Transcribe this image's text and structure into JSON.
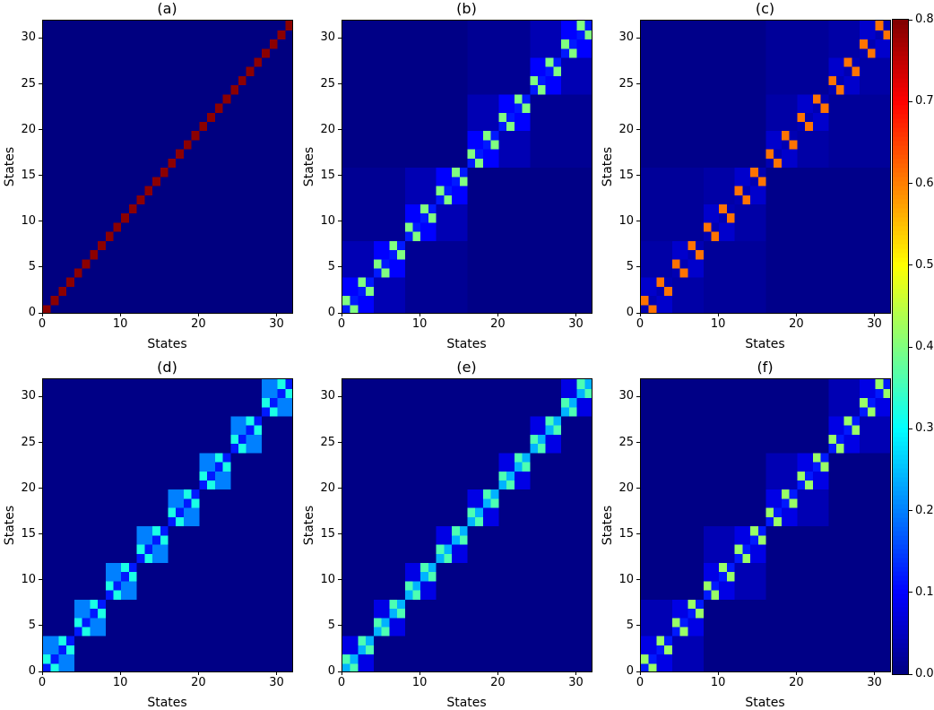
{
  "figure": {
    "colormap": "jet",
    "vmin": 0.0,
    "vmax": 0.8,
    "colorbar_ticks": [
      "0.0",
      "0.1",
      "0.2",
      "0.3",
      "0.4",
      "0.5",
      "0.6",
      "0.7",
      "0.8"
    ],
    "colors": {
      "background_low": "#00007f",
      "high": "#7f0000",
      "frame": "#000000"
    }
  },
  "chart_data": [
    {
      "type": "heatmap",
      "title": "(a)",
      "xlabel": "States",
      "ylabel": "States",
      "xlim": [
        0,
        32
      ],
      "ylim": [
        0,
        32
      ],
      "xticks": [
        "0",
        "10",
        "20",
        "30"
      ],
      "yticks": [
        "0",
        "5",
        "10",
        "15",
        "20",
        "25",
        "30"
      ],
      "size": 32,
      "structure": {
        "diagonal": 0.79,
        "background": 0.0
      }
    },
    {
      "type": "heatmap",
      "title": "(b)",
      "xlabel": "States",
      "ylabel": "States",
      "xlim": [
        0,
        32
      ],
      "ylim": [
        0,
        32
      ],
      "xticks": [
        "0",
        "10",
        "20",
        "30"
      ],
      "yticks": [
        "0",
        "5",
        "10",
        "15",
        "20",
        "25",
        "30"
      ],
      "size": 32,
      "structure": {
        "levels": [
          {
            "block_size": 2,
            "same_block": 0.4,
            "diagonal": 0.12
          },
          {
            "block_size": 4,
            "value": 0.1
          },
          {
            "block_size": 8,
            "value": 0.04
          },
          {
            "block_size": 16,
            "value": 0.015
          }
        ],
        "background": 0.005
      }
    },
    {
      "type": "heatmap",
      "title": "(c)",
      "xlabel": "States",
      "ylabel": "States",
      "xlim": [
        0,
        32
      ],
      "ylim": [
        0,
        32
      ],
      "xticks": [
        "0",
        "10",
        "20",
        "30"
      ],
      "yticks": [
        "0",
        "5",
        "10",
        "15",
        "20",
        "25",
        "30"
      ],
      "size": 32,
      "structure": {
        "levels": [
          {
            "block_size": 2,
            "same_block": 0.61,
            "diagonal": 0.04
          },
          {
            "block_size": 4,
            "value": 0.06
          },
          {
            "block_size": 8,
            "value": 0.03
          },
          {
            "block_size": 16,
            "value": 0.02
          }
        ],
        "background": 0.008
      }
    },
    {
      "type": "heatmap",
      "title": "(d)",
      "xlabel": "States",
      "ylabel": "States",
      "xlim": [
        0,
        32
      ],
      "ylim": [
        0,
        32
      ],
      "xticks": [
        "0",
        "10",
        "20",
        "30"
      ],
      "yticks": [
        "0",
        "5",
        "10",
        "15",
        "20",
        "25",
        "30"
      ],
      "size": 32,
      "structure": {
        "levels": [
          {
            "block_size": 2,
            "same_block": 0.32,
            "diagonal": 0.12
          },
          {
            "block_size": 4,
            "value": 0.2
          }
        ],
        "background": 0.005
      }
    },
    {
      "type": "heatmap",
      "title": "(e)",
      "xlabel": "States",
      "ylabel": "States",
      "xlim": [
        0,
        32
      ],
      "ylim": [
        0,
        32
      ],
      "xticks": [
        "0",
        "10",
        "20",
        "30"
      ],
      "yticks": [
        "0",
        "5",
        "10",
        "15",
        "20",
        "25",
        "30"
      ],
      "size": 32,
      "structure": {
        "levels": [
          {
            "block_size": 2,
            "same_block": 0.36,
            "diagonal": 0.24
          },
          {
            "block_size": 4,
            "value": 0.08
          }
        ],
        "background": 0.005
      }
    },
    {
      "type": "heatmap",
      "title": "(f)",
      "xlabel": "States",
      "ylabel": "States",
      "xlim": [
        0,
        32
      ],
      "ylim": [
        0,
        32
      ],
      "xticks": [
        "0",
        "10",
        "20",
        "30"
      ],
      "yticks": [
        "0",
        "5",
        "10",
        "15",
        "20",
        "25",
        "30"
      ],
      "size": 32,
      "structure": {
        "levels": [
          {
            "block_size": 2,
            "same_block": 0.42,
            "diagonal": 0.12
          },
          {
            "block_size": 4,
            "value": 0.08
          },
          {
            "block_size": 8,
            "value": 0.04
          }
        ],
        "background": 0.005
      }
    }
  ]
}
